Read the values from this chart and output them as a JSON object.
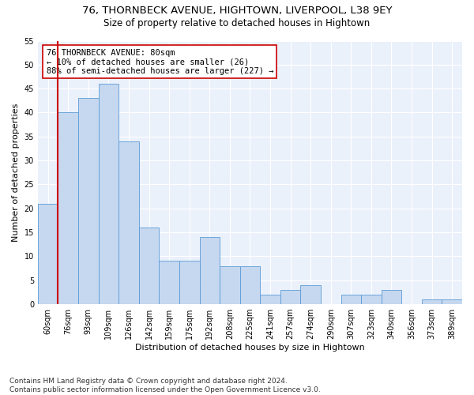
{
  "title1": "76, THORNBECK AVENUE, HIGHTOWN, LIVERPOOL, L38 9EY",
  "title2": "Size of property relative to detached houses in Hightown",
  "xlabel": "Distribution of detached houses by size in Hightown",
  "ylabel": "Number of detached properties",
  "categories": [
    "60sqm",
    "76sqm",
    "93sqm",
    "109sqm",
    "126sqm",
    "142sqm",
    "159sqm",
    "175sqm",
    "192sqm",
    "208sqm",
    "225sqm",
    "241sqm",
    "257sqm",
    "274sqm",
    "290sqm",
    "307sqm",
    "323sqm",
    "340sqm",
    "356sqm",
    "373sqm",
    "389sqm"
  ],
  "values": [
    21,
    40,
    43,
    46,
    34,
    16,
    9,
    9,
    14,
    8,
    8,
    2,
    3,
    4,
    0,
    2,
    2,
    3,
    0,
    1,
    1
  ],
  "bar_color": "#c5d8f0",
  "bar_edge_color": "#5b9bd5",
  "vline_color": "#cc0000",
  "annotation_text": "76 THORNBECK AVENUE: 80sqm\n← 10% of detached houses are smaller (26)\n88% of semi-detached houses are larger (227) →",
  "annotation_box_color": "#ffffff",
  "annotation_box_edge": "#cc0000",
  "ylim": [
    0,
    55
  ],
  "yticks": [
    0,
    5,
    10,
    15,
    20,
    25,
    30,
    35,
    40,
    45,
    50,
    55
  ],
  "bg_color": "#eaf1fb",
  "footer": "Contains HM Land Registry data © Crown copyright and database right 2024.\nContains public sector information licensed under the Open Government Licence v3.0.",
  "title1_fontsize": 9.5,
  "title2_fontsize": 8.5,
  "xlabel_fontsize": 8,
  "ylabel_fontsize": 8,
  "annotation_fontsize": 7.5,
  "footer_fontsize": 6.5,
  "tick_fontsize": 7
}
